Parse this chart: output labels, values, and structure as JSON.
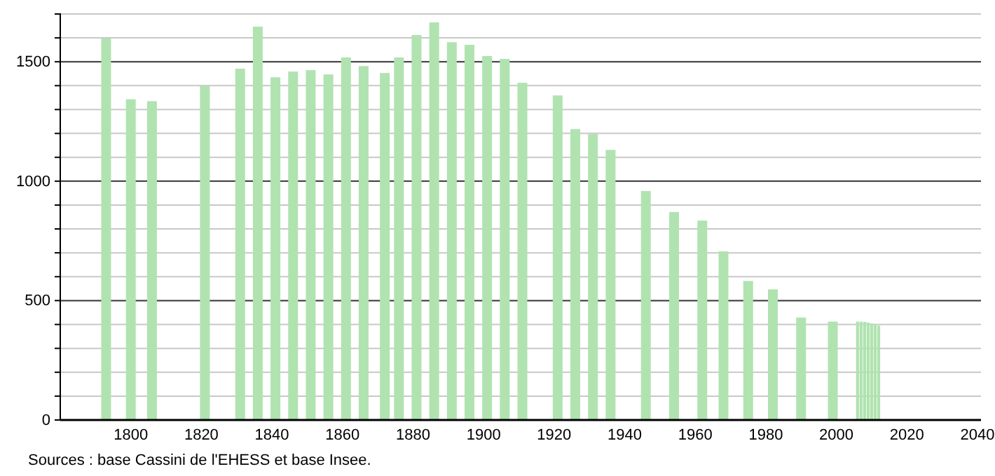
{
  "chart_data": {
    "type": "bar",
    "x": [
      1793,
      1800,
      1806,
      1821,
      1831,
      1836,
      1841,
      1846,
      1851,
      1856,
      1861,
      1866,
      1872,
      1876,
      1881,
      1886,
      1891,
      1896,
      1901,
      1906,
      1911,
      1921,
      1926,
      1931,
      1936,
      1946,
      1954,
      1962,
      1968,
      1975,
      1982,
      1990,
      1999,
      2006,
      2007,
      2008,
      2009,
      2010,
      2011,
      2012
    ],
    "values": [
      1598,
      1343,
      1335,
      1398,
      1471,
      1647,
      1435,
      1459,
      1465,
      1447,
      1518,
      1482,
      1453,
      1518,
      1612,
      1665,
      1582,
      1571,
      1524,
      1512,
      1412,
      1359,
      1218,
      1198,
      1131,
      959,
      871,
      835,
      706,
      582,
      547,
      429,
      412,
      412,
      412,
      411,
      408,
      404,
      400,
      395
    ],
    "color": "#b0e3b0",
    "xlim": [
      1780,
      2041
    ],
    "xticks": [
      1800,
      1820,
      1840,
      1860,
      1880,
      1900,
      1920,
      1940,
      1960,
      1980,
      2000,
      2020,
      2040
    ],
    "ylim": [
      0,
      1700
    ],
    "yticks": [
      0,
      {
        "value": 100,
        "label": null
      },
      {
        "value": 200,
        "label": null
      },
      {
        "value": 300,
        "label": null
      },
      {
        "value": 400,
        "label": null
      },
      500,
      {
        "value": 600,
        "label": null
      },
      {
        "value": 700,
        "label": null
      },
      {
        "value": 800,
        "label": null
      },
      {
        "value": 900,
        "label": null
      },
      1000,
      {
        "value": 1100,
        "label": null
      },
      {
        "value": 1200,
        "label": null
      },
      {
        "value": 1300,
        "label": null
      },
      {
        "value": 1400,
        "label": null
      },
      1500,
      {
        "value": 1600,
        "label": null
      },
      {
        "value": 1700,
        "label": null
      }
    ],
    "grid": true,
    "annotations": [
      "Sources : base Cassini de l'EHESS et base Insee."
    ]
  }
}
